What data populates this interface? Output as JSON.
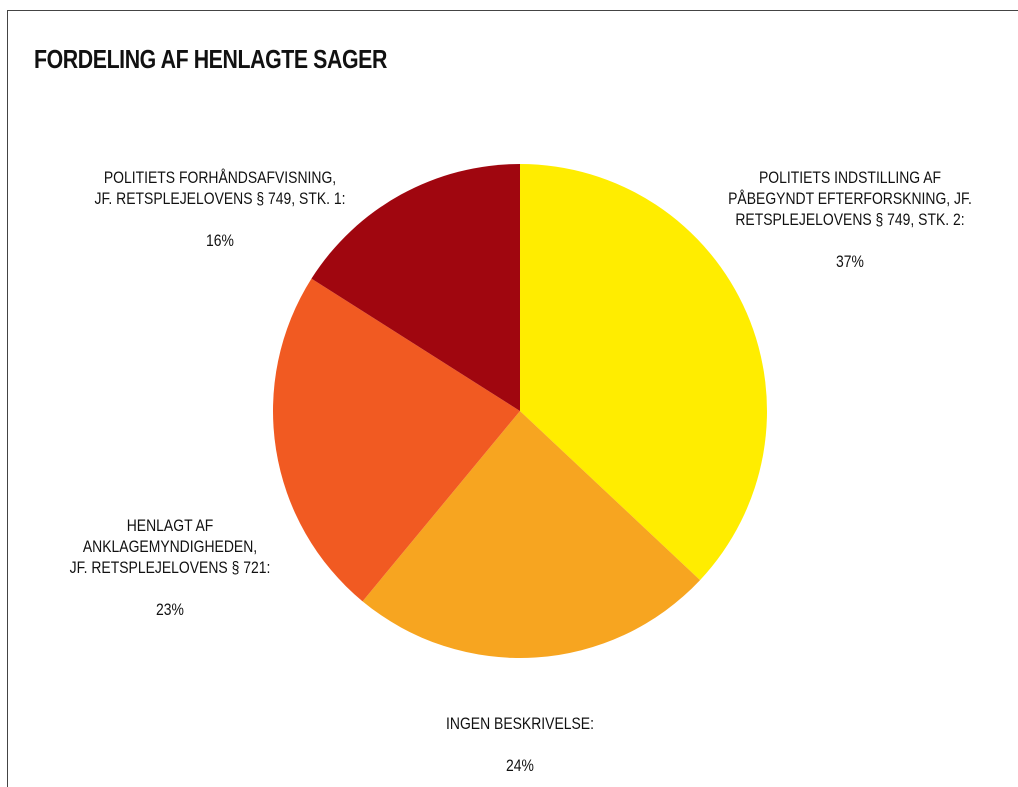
{
  "chart_data": {
    "type": "pie",
    "title": "FORDELING AF HENLAGTE SAGER",
    "slices": [
      {
        "label": "POLITIETS INDSTILLING AF\nPÅBEGYNDT EFTERFORSKNING, JF.\nRETSPLEJELOVENS § 749, STK. 2:",
        "value_label": "37%",
        "value": 37,
        "color": "#FFED00"
      },
      {
        "label": "INGEN BESKRIVELSE:",
        "value_label": "24%",
        "value": 24,
        "color": "#F7A520"
      },
      {
        "label": "HENLAGT AF\nANKLAGEMYNDIGHEDEN,\nJF. RETSPLEJELOVENS § 721:",
        "value_label": "23%",
        "value": 23,
        "color": "#F15A22"
      },
      {
        "label": "POLITIETS FORHÅNDSAFVISNING,\nJF. RETSPLEJELOVENS § 749, STK. 1:",
        "value_label": "16%",
        "value": 16,
        "color": "#A0060F"
      }
    ],
    "start": "12 o'clock",
    "direction": "clockwise",
    "legend": "none"
  }
}
